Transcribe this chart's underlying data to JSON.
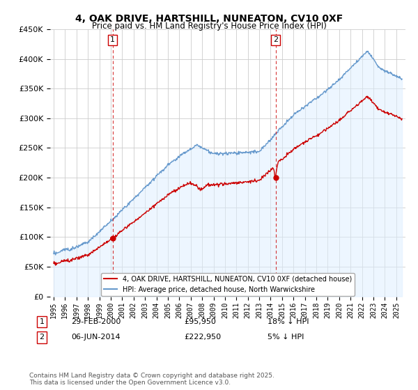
{
  "title": "4, OAK DRIVE, HARTSHILL, NUNEATON, CV10 0XF",
  "subtitle": "Price paid vs. HM Land Registry's House Price Index (HPI)",
  "ylim": [
    0,
    450000
  ],
  "yticks": [
    0,
    50000,
    100000,
    150000,
    200000,
    250000,
    300000,
    350000,
    400000,
    450000
  ],
  "legend_line1": "4, OAK DRIVE, HARTSHILL, NUNEATON, CV10 0XF (detached house)",
  "legend_line2": "HPI: Average price, detached house, North Warwickshire",
  "annotation1_date": "29-FEB-2000",
  "annotation1_price": "£95,950",
  "annotation1_hpi": "18% ↓ HPI",
  "annotation2_date": "06-JUN-2014",
  "annotation2_price": "£222,950",
  "annotation2_hpi": "5% ↓ HPI",
  "footer": "Contains HM Land Registry data © Crown copyright and database right 2025.\nThis data is licensed under the Open Government Licence v3.0.",
  "line_color_red": "#cc0000",
  "line_color_blue": "#6699cc",
  "fill_color_blue": "#ddeeff",
  "vline_color": "#cc0000",
  "sale1_year": 2000.16,
  "sale1_price": 95950,
  "sale2_year": 2014.43,
  "sale2_price": 222950,
  "background_color": "#ffffff",
  "grid_color": "#cccccc",
  "xlim_left": 1994.7,
  "xlim_right": 2025.8
}
